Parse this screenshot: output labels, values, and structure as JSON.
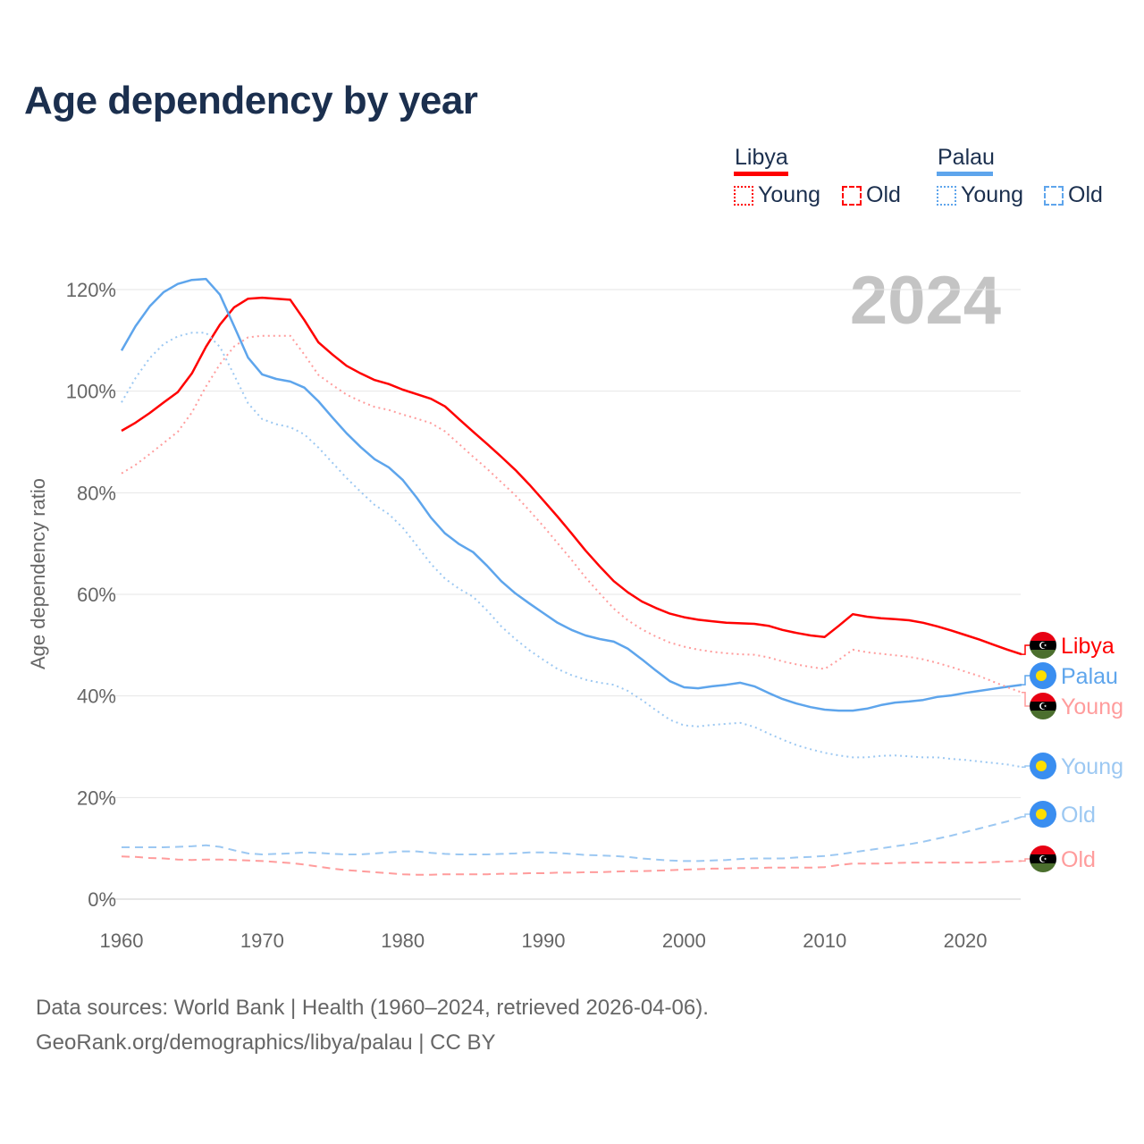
{
  "title": "Age dependency by year",
  "legend": {
    "countries": [
      {
        "name": "Libya",
        "color": "#ff0000",
        "items": [
          "Young",
          "Old"
        ]
      },
      {
        "name": "Palau",
        "color": "#5ea5ec",
        "items": [
          "Young",
          "Old"
        ]
      }
    ]
  },
  "source": {
    "line1": "Data sources: World Bank | Health (1960–2024, retrieved 2026-04-06).",
    "line2": "GeoRank.org/demographics/libya/palau | CC BY"
  },
  "chart_data": {
    "type": "line",
    "title": "Age dependency by year",
    "year_label": "2024",
    "xlabel": "",
    "ylabel": "Age dependency ratio",
    "xlim": [
      1960,
      2024
    ],
    "ylim": [
      0,
      120
    ],
    "x_ticks": [
      "1960",
      "1970",
      "1980",
      "1990",
      "2000",
      "2010",
      "2020"
    ],
    "y_ticks": [
      "0%",
      "20%",
      "40%",
      "60%",
      "80%",
      "100%",
      "120%"
    ],
    "grid": true,
    "x_start": 1960,
    "series": [
      {
        "name": "Libya",
        "end_label": "Libya",
        "country": "Libya",
        "kind": "total",
        "color": "#ff0000",
        "values": [
          92.2,
          93.8,
          95.7,
          97.8,
          99.8,
          103.5,
          108.7,
          113.1,
          116.5,
          118.2,
          118.4,
          118.2,
          118.0,
          114.0,
          109.6,
          107.2,
          105.0,
          103.5,
          102.2,
          101.4,
          100.3,
          99.4,
          98.5,
          97.0,
          94.5,
          92.0,
          89.6,
          87.1,
          84.5,
          81.6,
          78.5,
          75.3,
          72.0,
          68.6,
          65.5,
          62.6,
          60.4,
          58.6,
          57.3,
          56.2,
          55.5,
          55.0,
          54.7,
          54.4,
          54.3,
          54.2,
          53.8,
          53.0,
          52.4,
          51.9,
          51.6,
          53.8,
          56.1,
          55.6,
          55.3,
          55.1,
          54.9,
          54.4,
          53.7,
          52.9,
          52.0,
          51.1,
          50.1,
          49.1,
          48.2
        ]
      },
      {
        "name": "Palau",
        "end_label": "Palau",
        "country": "Palau",
        "kind": "total",
        "color": "#5ea5ec",
        "values": [
          108,
          112.8,
          116.7,
          119.5,
          121.1,
          121.9,
          122.1,
          119,
          112.8,
          106.6,
          103.3,
          102.4,
          101.9,
          100.7,
          98,
          94.8,
          91.7,
          89,
          86.6,
          85,
          82.5,
          79,
          75.1,
          72,
          69.9,
          68.3,
          65.6,
          62.6,
          60.2,
          58.2,
          56.3,
          54.4,
          53,
          51.9,
          51.2,
          50.7,
          49.3,
          47.2,
          45,
          42.9,
          41.7,
          41.5,
          41.9,
          42.2,
          42.6,
          41.9,
          40.6,
          39.4,
          38.5,
          37.8,
          37.3,
          37.1,
          37.1,
          37.5,
          38.2,
          38.7,
          38.9,
          39.2,
          39.8,
          40.1,
          40.6,
          41,
          41.4,
          41.8,
          42.2
        ]
      },
      {
        "name": "Libya Young",
        "end_label": "Young",
        "country": "Libya",
        "kind": "young",
        "color": "#ff9c9c",
        "values": [
          83.8,
          85.5,
          87.6,
          89.8,
          92.0,
          95.8,
          100.9,
          105.3,
          108.8,
          110.6,
          110.9,
          110.9,
          110.9,
          107.2,
          103.2,
          101.2,
          99.3,
          98.0,
          96.9,
          96.3,
          95.4,
          94.6,
          93.7,
          92.1,
          89.6,
          87.1,
          84.7,
          82.1,
          79.5,
          76.5,
          73.4,
          70.1,
          66.8,
          63.3,
          60.2,
          57.2,
          54.9,
          53.1,
          51.7,
          50.5,
          49.7,
          49.1,
          48.7,
          48.4,
          48.2,
          48.1,
          47.6,
          46.8,
          46.2,
          45.7,
          45.3,
          47.1,
          49.1,
          48.6,
          48.3,
          48.0,
          47.7,
          47.2,
          46.5,
          45.7,
          44.8,
          43.9,
          42.8,
          41.7,
          40.7
        ]
      },
      {
        "name": "Palau Young",
        "end_label": "Young",
        "country": "Palau",
        "kind": "young",
        "color": "#9cc8f2",
        "values": [
          97.8,
          102.6,
          106.5,
          109.3,
          110.8,
          111.5,
          111.5,
          108.7,
          103.2,
          97.6,
          94.5,
          93.5,
          92.9,
          91.5,
          88.9,
          85.9,
          82.9,
          80.2,
          77.6,
          75.8,
          73.1,
          69.6,
          66.0,
          63.1,
          61.1,
          59.5,
          56.8,
          53.7,
          51.2,
          49.0,
          47.1,
          45.3,
          44.1,
          43.2,
          42.6,
          42.2,
          41.0,
          39.2,
          37.2,
          35.3,
          34.2,
          34.0,
          34.3,
          34.5,
          34.7,
          33.9,
          32.6,
          31.4,
          30.3,
          29.5,
          28.8,
          28.3,
          27.9,
          27.9,
          28.2,
          28.3,
          28.1,
          27.9,
          27.9,
          27.6,
          27.4,
          27.1,
          26.8,
          26.5,
          26.0
        ]
      },
      {
        "name": "Palau Old",
        "end_label": "Old",
        "country": "Palau",
        "kind": "old",
        "color": "#9cc8f2",
        "values": [
          10.2,
          10.2,
          10.2,
          10.2,
          10.3,
          10.4,
          10.6,
          10.3,
          9.6,
          9.0,
          8.8,
          8.9,
          9.0,
          9.2,
          9.1,
          8.9,
          8.8,
          8.8,
          9.0,
          9.2,
          9.4,
          9.4,
          9.1,
          8.9,
          8.8,
          8.8,
          8.8,
          8.9,
          9.0,
          9.2,
          9.2,
          9.1,
          8.9,
          8.7,
          8.6,
          8.5,
          8.3,
          8.0,
          7.8,
          7.6,
          7.5,
          7.5,
          7.6,
          7.7,
          7.9,
          8.0,
          8.0,
          8.0,
          8.2,
          8.3,
          8.5,
          8.8,
          9.2,
          9.6,
          10.0,
          10.4,
          10.8,
          11.3,
          11.9,
          12.5,
          13.2,
          13.9,
          14.6,
          15.3,
          16.2
        ]
      },
      {
        "name": "Libya Old",
        "end_label": "Old",
        "country": "Libya",
        "kind": "old",
        "color": "#ff9c9c",
        "values": [
          8.4,
          8.3,
          8.1,
          8.0,
          7.8,
          7.7,
          7.8,
          7.8,
          7.7,
          7.6,
          7.5,
          7.3,
          7.1,
          6.8,
          6.4,
          6.0,
          5.7,
          5.5,
          5.3,
          5.1,
          4.9,
          4.8,
          4.8,
          4.9,
          4.9,
          4.9,
          4.9,
          5.0,
          5.0,
          5.1,
          5.1,
          5.2,
          5.2,
          5.3,
          5.3,
          5.4,
          5.5,
          5.5,
          5.6,
          5.7,
          5.8,
          5.9,
          6.0,
          6.0,
          6.1,
          6.1,
          6.2,
          6.2,
          6.2,
          6.2,
          6.3,
          6.7,
          7.0,
          7.0,
          7.0,
          7.1,
          7.2,
          7.2,
          7.2,
          7.2,
          7.2,
          7.2,
          7.3,
          7.4,
          7.5
        ]
      }
    ]
  }
}
